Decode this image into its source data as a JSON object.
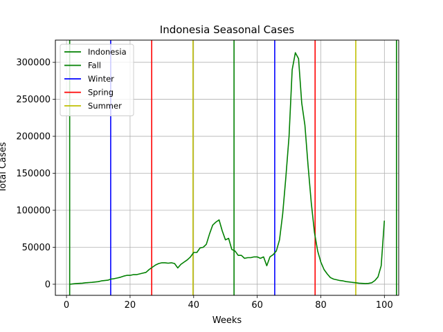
{
  "chart_data": {
    "type": "line",
    "title": "Indonesia Seasonal Cases",
    "xlabel": "Weeks",
    "ylabel": "Total Cases",
    "xlim": [
      -3.5,
      104.5
    ],
    "ylim": [
      -15000,
      330000
    ],
    "xticks": [
      0,
      20,
      40,
      60,
      80,
      100
    ],
    "yticks": [
      0,
      50000,
      100000,
      150000,
      200000,
      250000,
      300000
    ],
    "grid": true,
    "legend_position": "upper-left",
    "series": [
      {
        "name": "Indonesia",
        "color": "#008000",
        "x": [
          1,
          2,
          3,
          4,
          5,
          6,
          7,
          8,
          9,
          10,
          11,
          12,
          13,
          14,
          15,
          16,
          17,
          18,
          19,
          20,
          21,
          22,
          23,
          24,
          25,
          26,
          27,
          28,
          29,
          30,
          31,
          32,
          33,
          34,
          35,
          36,
          37,
          38,
          39,
          40,
          41,
          42,
          43,
          44,
          45,
          46,
          47,
          48,
          49,
          50,
          51,
          52,
          53,
          54,
          55,
          56,
          57,
          58,
          59,
          60,
          61,
          62,
          63,
          64,
          65,
          66,
          67,
          68,
          69,
          70,
          71,
          72,
          73,
          74,
          75,
          76,
          77,
          78,
          79,
          80,
          81,
          82,
          83,
          84,
          85,
          86,
          87,
          88,
          89,
          90,
          91,
          92,
          93,
          94,
          95,
          96,
          97,
          98,
          99,
          100
        ],
        "y": [
          0,
          500,
          1000,
          1200,
          1500,
          2000,
          2300,
          2600,
          3000,
          3500,
          4500,
          5000,
          5500,
          7000,
          7500,
          8500,
          9500,
          11000,
          12000,
          12000,
          13000,
          13000,
          14000,
          15000,
          16000,
          20000,
          23000,
          26000,
          28000,
          29000,
          29000,
          28500,
          29000,
          28000,
          22000,
          27000,
          30000,
          33000,
          37000,
          43000,
          43000,
          49000,
          50000,
          54000,
          68000,
          80000,
          84000,
          87000,
          72000,
          60000,
          62000,
          47000,
          45000,
          39000,
          39000,
          35000,
          36000,
          36000,
          37000,
          37000,
          35000,
          37000,
          25000,
          37000,
          40000,
          45000,
          60000,
          95000,
          145000,
          200000,
          290000,
          313000,
          305000,
          245000,
          215000,
          160000,
          110000,
          70000,
          45000,
          30000,
          20000,
          14000,
          9000,
          7000,
          6000,
          5000,
          4500,
          3500,
          3000,
          2500,
          2000,
          1500,
          1200,
          1000,
          1200,
          2000,
          5000,
          10000,
          25000,
          86000
        ]
      }
    ],
    "vlines": [
      {
        "name": "Fall",
        "color": "#008000",
        "x": [
          1,
          52.7,
          103.8
        ]
      },
      {
        "name": "Winter",
        "color": "#0000ff",
        "x": [
          13.9,
          65.5
        ]
      },
      {
        "name": "Spring",
        "color": "#ff0000",
        "x": [
          26.8,
          78.2
        ]
      },
      {
        "name": "Summer",
        "color": "#bfbf00",
        "x": [
          39.8,
          91
        ]
      }
    ],
    "legend": [
      "Indonesia",
      "Fall",
      "Winter",
      "Spring",
      "Summer"
    ]
  }
}
